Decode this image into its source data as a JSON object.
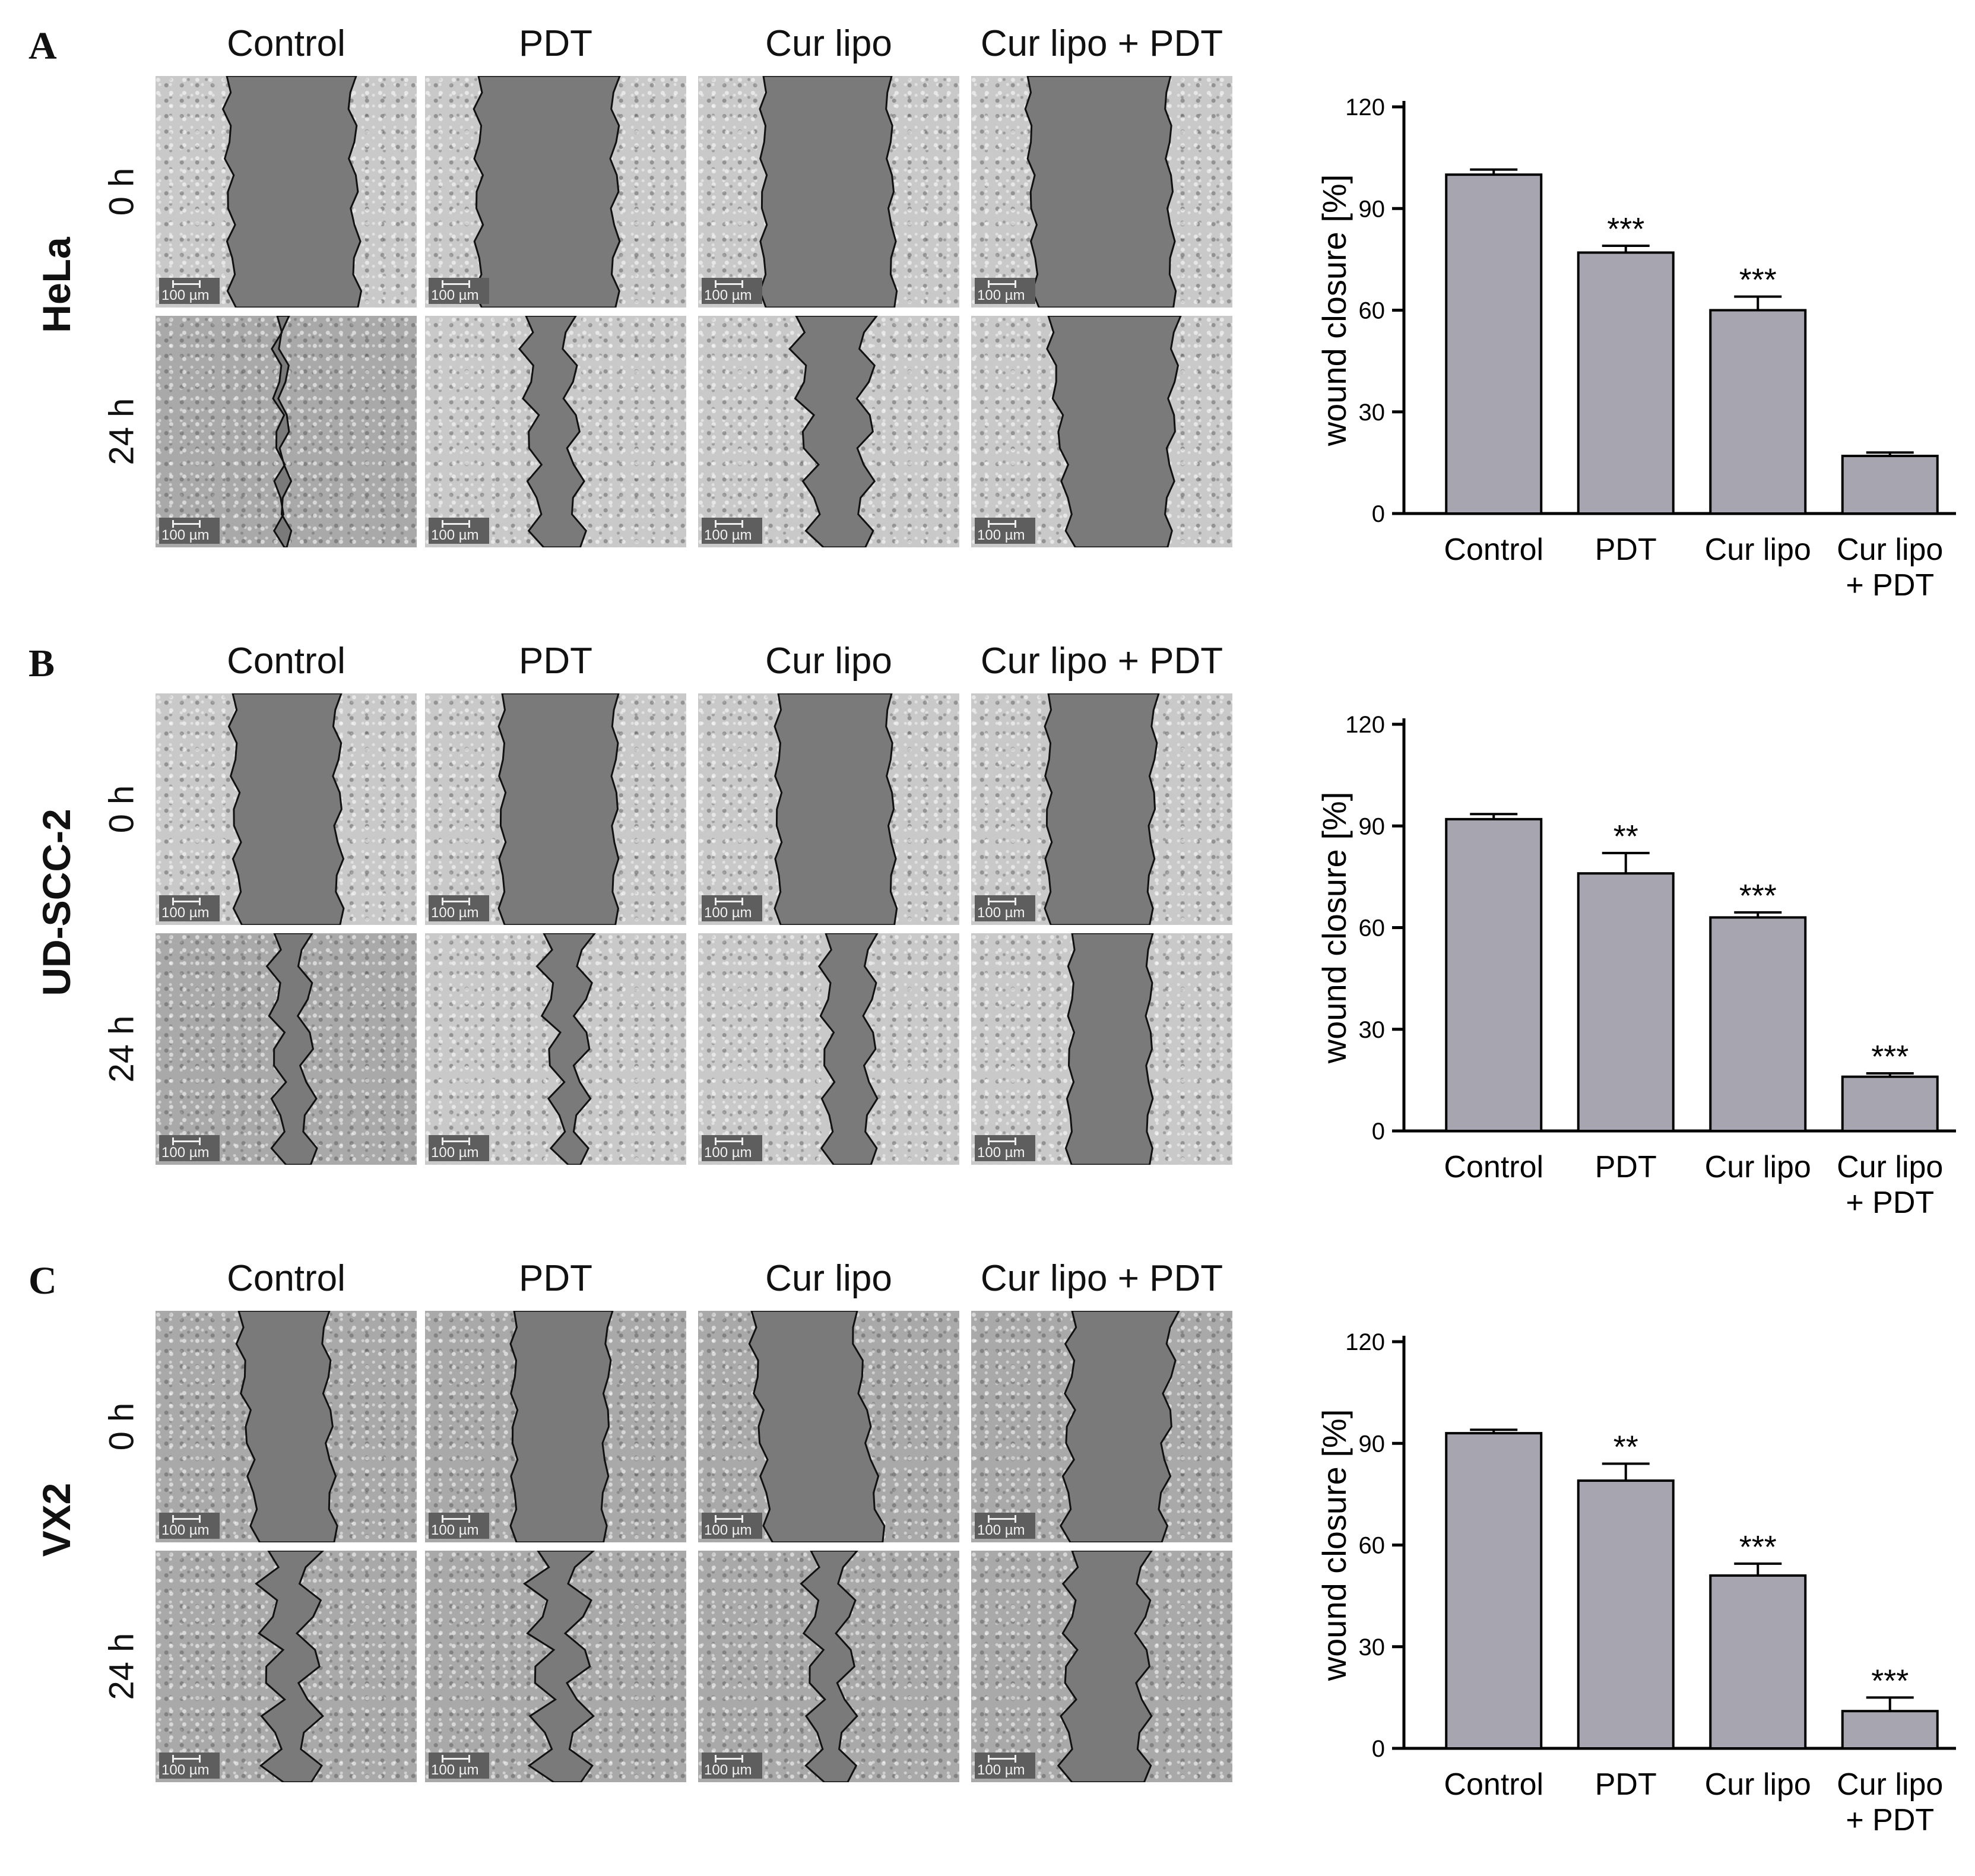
{
  "column_labels": [
    "Control",
    "PDT",
    "Cur lipo",
    "Cur lipo + PDT"
  ],
  "row_labels": [
    "0 h",
    "24 h"
  ],
  "scale_label": "100 µm",
  "colors": {
    "bar_fill": "#a7a5af",
    "gap": "#7a7a7a",
    "axis": "#000000"
  },
  "panels": [
    {
      "letter": "A",
      "cell_line": "HeLa"
    },
    {
      "letter": "B",
      "cell_line": "UD-SCC-2"
    },
    {
      "letter": "C",
      "cell_line": "VX2"
    }
  ],
  "chart_data": [
    {
      "type": "bar",
      "categories": [
        "Control",
        "PDT",
        "Cur lipo",
        "Cur lipo\n+ PDT"
      ],
      "values": [
        100,
        77,
        60,
        17
      ],
      "errors": [
        1.5,
        2,
        4,
        1
      ],
      "annotations": [
        "",
        "***",
        "***",
        ""
      ],
      "ylabel": "wound closure [%]",
      "ylim": [
        0,
        120
      ],
      "yticks": [
        0,
        30,
        60,
        90,
        120
      ]
    },
    {
      "type": "bar",
      "categories": [
        "Control",
        "PDT",
        "Cur lipo",
        "Cur lipo\n+ PDT"
      ],
      "values": [
        92,
        76,
        63,
        16
      ],
      "errors": [
        1.5,
        6,
        1.5,
        1
      ],
      "annotations": [
        "",
        "**",
        "***",
        "***"
      ],
      "ylabel": "wound closure [%]",
      "ylim": [
        0,
        120
      ],
      "yticks": [
        0,
        30,
        60,
        90,
        120
      ]
    },
    {
      "type": "bar",
      "categories": [
        "Control",
        "PDT",
        "Cur lipo",
        "Cur lipo\n+ PDT"
      ],
      "values": [
        93,
        79,
        51,
        11
      ],
      "errors": [
        1,
        5,
        3.5,
        4
      ],
      "annotations": [
        "",
        "**",
        "***",
        "***"
      ],
      "ylabel": "wound closure [%]",
      "ylim": [
        0,
        120
      ],
      "yticks": [
        0,
        30,
        60,
        90,
        120
      ]
    }
  ]
}
